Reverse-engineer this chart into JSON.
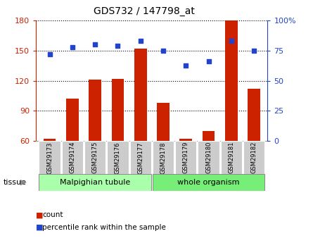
{
  "title": "GDS732 / 147798_at",
  "samples": [
    "GSM29173",
    "GSM29174",
    "GSM29175",
    "GSM29176",
    "GSM29177",
    "GSM29178",
    "GSM29179",
    "GSM29180",
    "GSM29181",
    "GSM29182"
  ],
  "counts": [
    62,
    102,
    121,
    122,
    152,
    98,
    62,
    70,
    180,
    112
  ],
  "percentiles": [
    72,
    78,
    80,
    79,
    83,
    75,
    63,
    66,
    83,
    75
  ],
  "left_ylim": [
    60,
    180
  ],
  "left_yticks": [
    60,
    90,
    120,
    150,
    180
  ],
  "right_ylim": [
    0,
    100
  ],
  "right_yticks": [
    0,
    25,
    50,
    75,
    100
  ],
  "bar_color": "#cc2200",
  "dot_color": "#2244cc",
  "tissue_groups": [
    {
      "label": "Malpighian tubule",
      "start": 0,
      "end": 4,
      "color": "#aaffaa"
    },
    {
      "label": "whole organism",
      "start": 5,
      "end": 9,
      "color": "#77ee77"
    }
  ],
  "tissue_label": "tissue",
  "legend_count_label": "count",
  "legend_percentile_label": "percentile rank within the sample",
  "bar_width": 0.55,
  "bg_color": "#ffffff",
  "xlabel_bg": "#cccccc"
}
